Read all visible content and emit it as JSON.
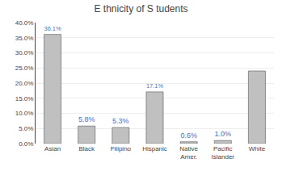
{
  "chart_data": {
    "type": "bar",
    "title": "E thnicity of S tudents",
    "categories": [
      "Asian",
      "Black",
      "Filipino",
      "Hispanic",
      "Native\nAmer.",
      "Pacific\nIslander",
      "White"
    ],
    "values": [
      0.361,
      0.058,
      0.053,
      0.171,
      0.006,
      0.01,
      0.24
    ],
    "value_labels": [
      "36.1%",
      "5.8%",
      "5.3%",
      "17.1%",
      "0.6%",
      "1.0%",
      null
    ],
    "data_labels": true,
    "color": "#c0c0c0",
    "ylim": [
      0,
      0.4
    ],
    "yticks": [
      {
        "value": 0.0,
        "label": "0.0%"
      },
      {
        "value": 0.05,
        "label": "5.0%"
      },
      {
        "value": 0.1,
        "label": "10.0%"
      },
      {
        "value": 0.15,
        "label": "15.0%"
      },
      {
        "value": 0.2,
        "label": "20.0%"
      },
      {
        "value": 0.25,
        "label": "25.0%"
      },
      {
        "value": 0.3,
        "label": "30.0%"
      },
      {
        "value": 0.35,
        "label": "35.0%"
      },
      {
        "value": 0.4,
        "label": "40.0%"
      }
    ],
    "grid": true
  }
}
